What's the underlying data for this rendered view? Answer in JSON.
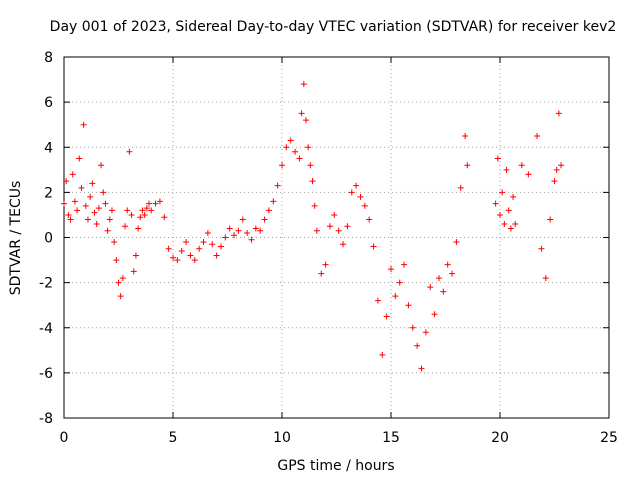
{
  "chart_data": {
    "type": "scatter",
    "title": "Day 001 of 2023, Sidereal Day-to-day VTEC variation (SDTVAR) for receiver kev2",
    "xlabel": "GPS time / hours",
    "ylabel": "SDTVAR / TECUs",
    "xlim": [
      0,
      25
    ],
    "ylim": [
      -8,
      8
    ],
    "xticks": [
      "0",
      "5",
      "10",
      "15",
      "20",
      "25"
    ],
    "yticks": [
      "-8",
      "-6",
      "-4",
      "-2",
      "0",
      "2",
      "4",
      "6",
      "8"
    ],
    "grid": true,
    "marker": "+",
    "color": "#ff0000",
    "series": [
      {
        "name": "SDTVAR",
        "x": [
          0.0,
          0.1,
          0.2,
          0.3,
          0.4,
          0.5,
          0.6,
          0.7,
          0.8,
          0.9,
          1.0,
          1.1,
          1.2,
          1.3,
          1.4,
          1.5,
          1.6,
          1.7,
          1.8,
          1.9,
          2.0,
          2.1,
          2.2,
          2.3,
          2.4,
          2.5,
          2.6,
          2.7,
          2.8,
          2.9,
          3.0,
          3.1,
          3.2,
          3.3,
          3.4,
          3.5,
          3.6,
          3.7,
          3.8,
          3.9,
          4.0,
          4.2,
          4.4,
          4.6,
          4.8,
          5.0,
          5.2,
          5.4,
          5.6,
          5.8,
          6.0,
          6.2,
          6.4,
          6.6,
          6.8,
          7.0,
          7.2,
          7.4,
          7.6,
          7.8,
          8.0,
          8.2,
          8.4,
          8.6,
          8.8,
          9.0,
          9.2,
          9.4,
          9.6,
          9.8,
          10.0,
          10.2,
          10.4,
          10.6,
          10.8,
          10.9,
          11.0,
          11.1,
          11.2,
          11.3,
          11.4,
          11.5,
          11.6,
          11.8,
          12.0,
          12.2,
          12.4,
          12.6,
          12.8,
          13.0,
          13.2,
          13.4,
          13.6,
          13.8,
          14.0,
          14.2,
          14.4,
          14.6,
          14.8,
          15.0,
          15.2,
          15.4,
          15.6,
          15.8,
          16.0,
          16.2,
          16.4,
          16.6,
          16.8,
          17.0,
          17.2,
          17.4,
          17.6,
          17.8,
          18.0,
          18.2,
          18.4,
          18.5,
          19.8,
          19.9,
          20.0,
          20.1,
          20.2,
          20.3,
          20.4,
          20.5,
          20.6,
          20.7,
          21.0,
          21.3,
          21.7,
          21.9,
          22.1,
          22.3,
          22.5,
          22.6,
          22.7,
          22.8
        ],
        "y": [
          1.5,
          2.5,
          1.0,
          0.8,
          2.8,
          1.6,
          1.2,
          3.5,
          2.2,
          5.0,
          1.4,
          0.8,
          1.8,
          2.4,
          1.1,
          0.6,
          1.3,
          3.2,
          2.0,
          1.5,
          0.3,
          0.8,
          1.2,
          -0.2,
          -1.0,
          -2.0,
          -2.6,
          -1.8,
          0.5,
          1.2,
          3.8,
          1.0,
          -1.5,
          -0.8,
          0.4,
          0.9,
          1.2,
          1.0,
          1.3,
          1.5,
          1.2,
          1.5,
          1.6,
          0.9,
          -0.5,
          -0.9,
          -1.0,
          -0.6,
          -0.2,
          -0.8,
          -1.0,
          -0.5,
          -0.2,
          0.2,
          -0.3,
          -0.8,
          -0.4,
          0.0,
          0.4,
          0.1,
          0.3,
          0.8,
          0.2,
          -0.1,
          0.4,
          0.3,
          0.8,
          1.2,
          1.6,
          2.3,
          3.2,
          4.0,
          4.3,
          3.8,
          3.5,
          5.5,
          6.8,
          5.2,
          4.0,
          3.2,
          2.5,
          1.4,
          0.3,
          -1.6,
          -1.2,
          0.5,
          1.0,
          0.3,
          -0.3,
          0.5,
          2.0,
          2.3,
          1.8,
          1.4,
          0.8,
          -0.4,
          -2.8,
          -5.2,
          -3.5,
          -1.4,
          -2.6,
          -2.0,
          -1.2,
          -3.0,
          -4.0,
          -4.8,
          -5.8,
          -4.2,
          -2.2,
          -3.4,
          -1.8,
          -2.4,
          -1.2,
          -1.6,
          -0.2,
          2.2,
          4.5,
          3.2,
          1.5,
          3.5,
          1.0,
          2.0,
          0.6,
          3.0,
          1.2,
          0.4,
          1.8,
          0.6,
          3.2,
          2.8,
          4.5,
          -0.5,
          -1.8,
          0.8,
          2.5,
          3.0,
          5.5,
          3.2
        ]
      }
    ]
  }
}
